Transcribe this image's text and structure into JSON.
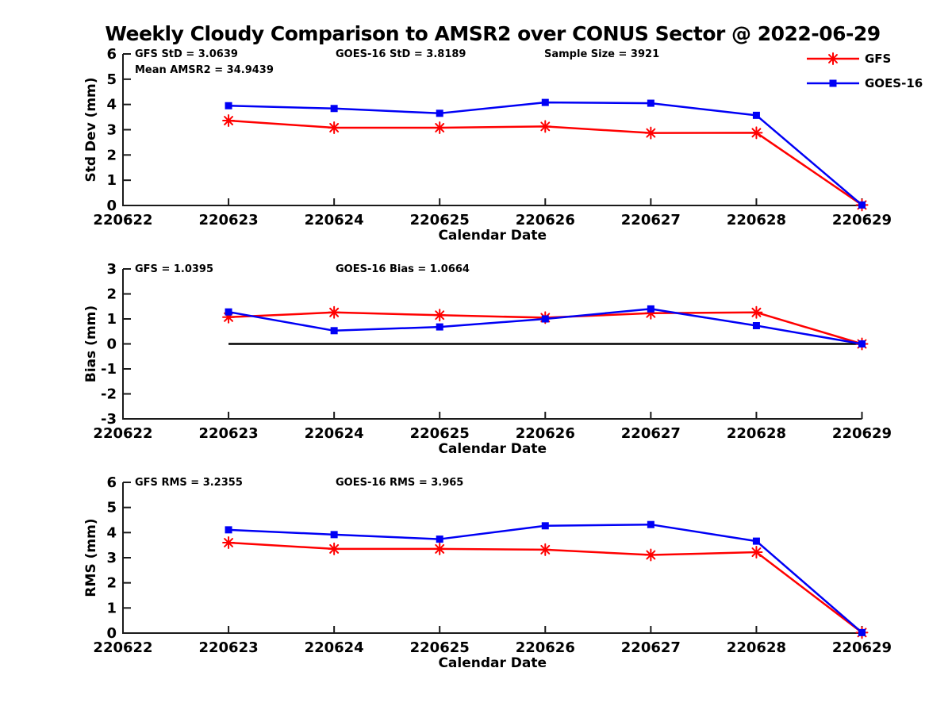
{
  "title": "Weekly Cloudy Comparison to AMSR2 over CONUS Sector @ 2022-06-29",
  "colors": {
    "gfs": "#ff0000",
    "goes16": "#0000f5",
    "axis": "#1a1a1a",
    "zero_line": "#000000"
  },
  "legend": {
    "items": [
      {
        "label": "GFS",
        "color": "#ff0000",
        "marker": "asterisk"
      },
      {
        "label": "GOES-16",
        "color": "#0000f5",
        "marker": "square"
      }
    ]
  },
  "x_axis": {
    "label": "Calendar Date",
    "ticks": [
      "220622",
      "220623",
      "220624",
      "220625",
      "220626",
      "220627",
      "220628",
      "220629"
    ]
  },
  "chart_data": [
    {
      "type": "line",
      "panel": "std-dev",
      "ylabel": "Std Dev (mm)",
      "ylim": [
        0,
        6
      ],
      "yticks": [
        0,
        1,
        2,
        3,
        4,
        5,
        6
      ],
      "x_dates": [
        "220623",
        "220624",
        "220625",
        "220626",
        "220627",
        "220628",
        "220629"
      ],
      "zero_line": false,
      "annotations": [
        {
          "text": "GFS StD = 3.0639",
          "col": 0,
          "row": 0
        },
        {
          "text": "Mean AMSR2 = 34.9439",
          "col": 0,
          "row": 1
        },
        {
          "text": "GOES-16 StD = 3.8189",
          "col": 1,
          "row": 0
        },
        {
          "text": "Sample Size = 3921",
          "col": 2,
          "row": 0
        }
      ],
      "series": [
        {
          "name": "GFS",
          "marker": "asterisk",
          "color": "#ff0000",
          "values": [
            3.36,
            3.08,
            3.08,
            3.13,
            2.87,
            2.88,
            0.02
          ]
        },
        {
          "name": "GOES-16",
          "marker": "square",
          "color": "#0000f5",
          "values": [
            3.95,
            3.84,
            3.65,
            4.08,
            4.05,
            3.57,
            0.02
          ]
        }
      ]
    },
    {
      "type": "line",
      "panel": "bias",
      "ylabel": "Bias (mm)",
      "ylim": [
        -3,
        3
      ],
      "yticks": [
        -3,
        -2,
        -1,
        0,
        1,
        2,
        3
      ],
      "x_dates": [
        "220623",
        "220624",
        "220625",
        "220626",
        "220627",
        "220628",
        "220629"
      ],
      "zero_line": true,
      "annotations": [
        {
          "text": "GFS = 1.0395",
          "col": 0,
          "row": 0
        },
        {
          "text": "GOES-16 Bias  = 1.0664",
          "col": 1,
          "row": 0
        }
      ],
      "series": [
        {
          "name": "GFS",
          "marker": "asterisk",
          "color": "#ff0000",
          "values": [
            1.07,
            1.26,
            1.15,
            1.05,
            1.23,
            1.26,
            0.0
          ]
        },
        {
          "name": "GOES-16",
          "marker": "square",
          "color": "#0000f5",
          "values": [
            1.28,
            0.53,
            0.68,
            1.0,
            1.4,
            0.73,
            0.0
          ]
        }
      ]
    },
    {
      "type": "line",
      "panel": "rms",
      "ylabel": "RMS (mm)",
      "ylim": [
        0,
        6
      ],
      "yticks": [
        0,
        1,
        2,
        3,
        4,
        5,
        6
      ],
      "x_dates": [
        "220623",
        "220624",
        "220625",
        "220626",
        "220627",
        "220628",
        "220629"
      ],
      "zero_line": false,
      "annotations": [
        {
          "text": "GFS RMS = 3.2355",
          "col": 0,
          "row": 0
        },
        {
          "text": "GOES-16 RMS = 3.965",
          "col": 1,
          "row": 0
        }
      ],
      "series": [
        {
          "name": "GFS",
          "marker": "asterisk",
          "color": "#ff0000",
          "values": [
            3.6,
            3.35,
            3.35,
            3.32,
            3.11,
            3.22,
            0.02
          ]
        },
        {
          "name": "GOES-16",
          "marker": "square",
          "color": "#0000f5",
          "values": [
            4.11,
            3.92,
            3.74,
            4.27,
            4.32,
            3.66,
            0.02
          ]
        }
      ]
    }
  ]
}
